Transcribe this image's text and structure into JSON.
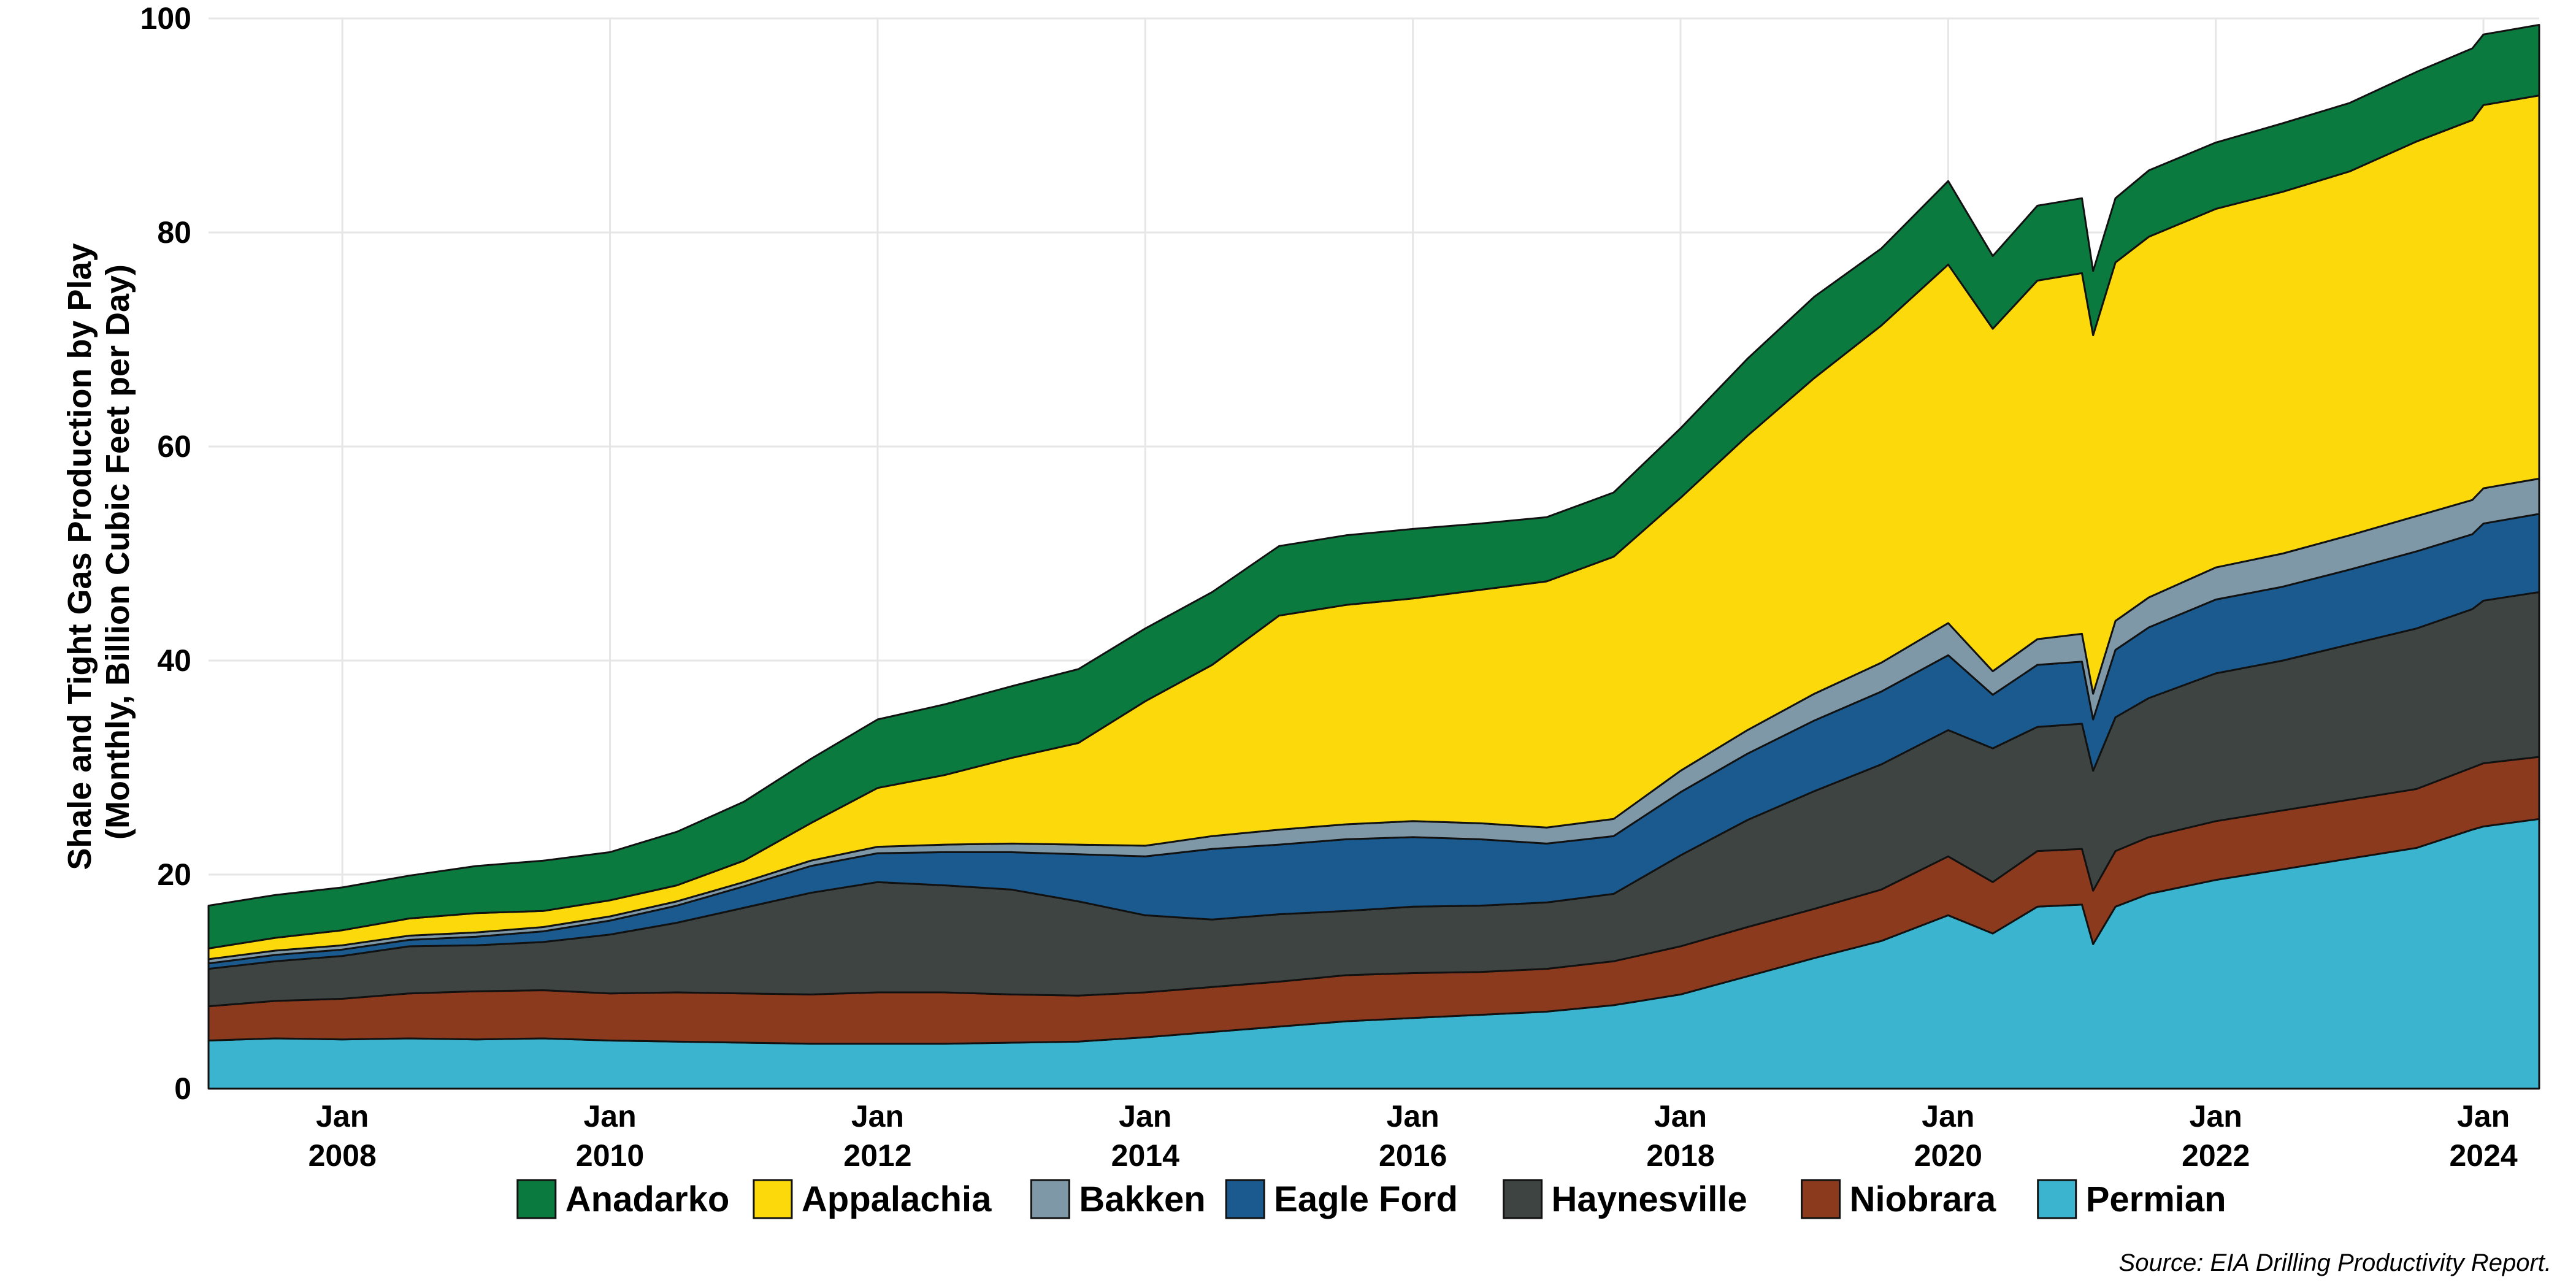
{
  "chart_data": {
    "type": "area",
    "stacked": true,
    "ylabel_lines": [
      "Shale and Tight Gas Production by Play",
      "(Monthly, Billion Cubic Feet per Day)"
    ],
    "xlabel": "",
    "ylim": [
      0,
      100
    ],
    "yticks": [
      0,
      20,
      40,
      60,
      80,
      100
    ],
    "xlim": [
      "2007-01",
      "2024-06"
    ],
    "xticks": [
      {
        "at": "2008-01",
        "line1": "Jan",
        "line2": "2008"
      },
      {
        "at": "2010-01",
        "line1": "Jan",
        "line2": "2010"
      },
      {
        "at": "2012-01",
        "line1": "Jan",
        "line2": "2012"
      },
      {
        "at": "2014-01",
        "line1": "Jan",
        "line2": "2014"
      },
      {
        "at": "2016-01",
        "line1": "Jan",
        "line2": "2016"
      },
      {
        "at": "2018-01",
        "line1": "Jan",
        "line2": "2018"
      },
      {
        "at": "2020-01",
        "line1": "Jan",
        "line2": "2020"
      },
      {
        "at": "2022-01",
        "line1": "Jan",
        "line2": "2022"
      },
      {
        "at": "2024-01",
        "line1": "Jan",
        "line2": "2024"
      }
    ],
    "grid": true,
    "legend_position": "bottom",
    "source_note": "Source: EIA Drilling Productivity Report.",
    "x": [
      "2007-01",
      "2007-07",
      "2008-01",
      "2008-07",
      "2009-01",
      "2009-07",
      "2010-01",
      "2010-07",
      "2011-01",
      "2011-07",
      "2012-01",
      "2012-07",
      "2013-01",
      "2013-07",
      "2014-01",
      "2014-07",
      "2015-01",
      "2015-07",
      "2016-01",
      "2016-07",
      "2017-01",
      "2017-07",
      "2018-01",
      "2018-07",
      "2019-01",
      "2019-07",
      "2020-01",
      "2020-05",
      "2020-09",
      "2021-01",
      "2021-02",
      "2021-04",
      "2021-07",
      "2022-01",
      "2022-07",
      "2023-01",
      "2023-07",
      "2023-12",
      "2024-01",
      "2024-06"
    ],
    "series": [
      {
        "name": "Permian",
        "color": "#3BB5CF",
        "values": [
          4.5,
          4.7,
          4.6,
          4.7,
          4.6,
          4.7,
          4.5,
          4.4,
          4.3,
          4.2,
          4.2,
          4.2,
          4.3,
          4.4,
          4.8,
          5.3,
          5.8,
          6.3,
          6.6,
          6.9,
          7.2,
          7.8,
          8.8,
          10.5,
          12.2,
          13.8,
          16.2,
          14.5,
          17.0,
          17.2,
          13.5,
          17.0,
          18.2,
          19.5,
          20.5,
          21.5,
          22.5,
          24.2,
          24.5,
          25.2
        ]
      },
      {
        "name": "Niobrara",
        "color": "#8B3A1E",
        "values": [
          3.2,
          3.5,
          3.8,
          4.2,
          4.5,
          4.5,
          4.4,
          4.6,
          4.6,
          4.6,
          4.8,
          4.8,
          4.5,
          4.3,
          4.2,
          4.2,
          4.2,
          4.3,
          4.2,
          4.0,
          4.0,
          4.1,
          4.5,
          4.6,
          4.6,
          4.8,
          5.5,
          4.8,
          5.2,
          5.2,
          5.0,
          5.2,
          5.3,
          5.5,
          5.5,
          5.5,
          5.5,
          5.8,
          5.9,
          5.8
        ]
      },
      {
        "name": "Haynesville",
        "color": "#3D4442",
        "values": [
          3.5,
          3.7,
          4.0,
          4.4,
          4.3,
          4.5,
          5.5,
          6.5,
          8.0,
          9.5,
          10.3,
          10.0,
          9.8,
          8.8,
          7.2,
          6.3,
          6.3,
          6.0,
          6.2,
          6.2,
          6.2,
          6.3,
          8.5,
          10.0,
          11.0,
          11.7,
          11.8,
          12.5,
          11.6,
          11.7,
          11.2,
          12.5,
          13.0,
          13.8,
          14.0,
          14.5,
          15.0,
          14.8,
          15.2,
          15.4
        ]
      },
      {
        "name": "Eagle Ford",
        "color": "#1A5A8E",
        "values": [
          0.5,
          0.6,
          0.6,
          0.6,
          0.8,
          1.0,
          1.3,
          1.6,
          2.0,
          2.5,
          2.7,
          3.1,
          3.5,
          4.4,
          5.5,
          6.6,
          6.5,
          6.7,
          6.5,
          6.2,
          5.5,
          5.4,
          5.9,
          6.2,
          6.6,
          6.8,
          7.0,
          5.0,
          5.8,
          5.8,
          4.8,
          6.3,
          6.6,
          6.9,
          6.9,
          7.0,
          7.2,
          7.0,
          7.2,
          7.3
        ]
      },
      {
        "name": "Bakken",
        "color": "#7F98A8",
        "values": [
          0.4,
          0.4,
          0.4,
          0.4,
          0.4,
          0.4,
          0.4,
          0.4,
          0.4,
          0.5,
          0.6,
          0.7,
          0.8,
          0.9,
          1.0,
          1.2,
          1.4,
          1.4,
          1.5,
          1.5,
          1.5,
          1.6,
          2.0,
          2.2,
          2.5,
          2.7,
          3.0,
          2.2,
          2.4,
          2.6,
          2.4,
          2.7,
          2.8,
          3.0,
          3.1,
          3.2,
          3.3,
          3.2,
          3.3,
          3.3
        ]
      },
      {
        "name": "Appalachia",
        "color": "#FCD90A",
        "values": [
          1.0,
          1.2,
          1.4,
          1.6,
          1.8,
          1.5,
          1.5,
          1.5,
          2.0,
          3.5,
          5.5,
          6.5,
          8.0,
          9.5,
          13.5,
          16.0,
          20.0,
          20.5,
          20.8,
          21.8,
          23.0,
          24.5,
          25.5,
          27.5,
          29.5,
          31.5,
          33.5,
          32.0,
          33.5,
          33.7,
          33.5,
          33.5,
          33.7,
          33.5,
          33.8,
          34.0,
          35.0,
          35.5,
          35.8,
          35.8
        ]
      },
      {
        "name": "Anadarko",
        "color": "#0A7A3E",
        "values": [
          4.0,
          4.0,
          4.0,
          4.0,
          4.4,
          4.7,
          4.5,
          5.0,
          5.5,
          6.0,
          6.4,
          6.6,
          6.7,
          6.9,
          6.8,
          6.8,
          6.5,
          6.5,
          6.5,
          6.2,
          6.0,
          6.0,
          6.5,
          7.2,
          7.6,
          7.2,
          7.8,
          6.8,
          7.0,
          7.0,
          6.0,
          6.0,
          6.2,
          6.2,
          6.4,
          6.4,
          6.5,
          6.7,
          6.6,
          6.6
        ]
      }
    ],
    "legend_order": [
      "Anadarko",
      "Appalachia",
      "Bakken",
      "Eagle Ford",
      "Haynesville",
      "Niobrara",
      "Permian"
    ]
  }
}
